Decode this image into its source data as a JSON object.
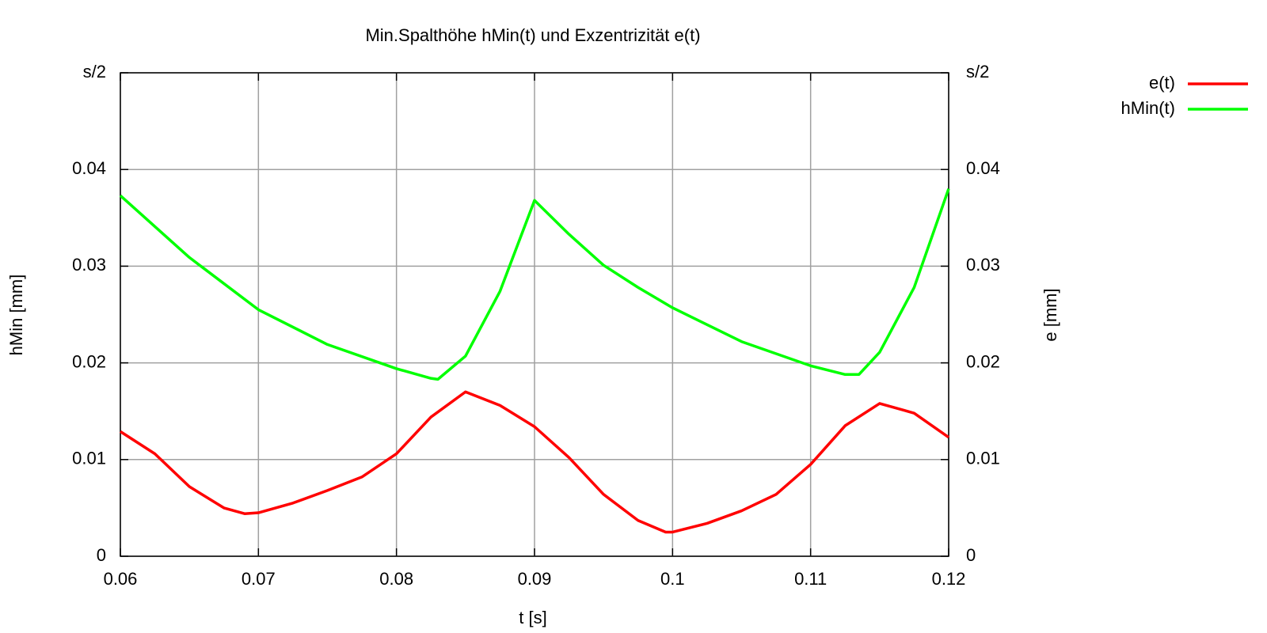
{
  "chart_data": {
    "type": "line",
    "title": "Min.Spalthöhe hMin(t) und Exzentrizität e(t)",
    "xlabel": "t [s]",
    "ylabel": "hMin [mm]",
    "y2label": "e [mm]",
    "xlim": [
      0.06,
      0.12
    ],
    "xticks": [
      0.06,
      0.07,
      0.08,
      0.09,
      0.1,
      0.11,
      0.12
    ],
    "ylim": [
      0,
      0.05
    ],
    "yticks": [
      0,
      0.01,
      0.02,
      0.03,
      0.04,
      {
        "value": 0.05,
        "label": "s/2"
      }
    ],
    "y2lim": [
      0,
      0.05
    ],
    "y2ticks": [
      0,
      0.01,
      0.02,
      0.03,
      0.04,
      {
        "value": 0.05,
        "label": "s/2"
      }
    ],
    "grid": true,
    "legend": "top-right",
    "series": [
      {
        "name": "e(t)",
        "color": "#ff0000",
        "axis": "y2",
        "x": [
          0.06,
          0.0625,
          0.065,
          0.0675,
          0.069,
          0.07,
          0.0725,
          0.075,
          0.0775,
          0.08,
          0.0825,
          0.085,
          0.0875,
          0.09,
          0.0925,
          0.095,
          0.0975,
          0.0995,
          0.1,
          0.1025,
          0.105,
          0.1075,
          0.11,
          0.1125,
          0.115,
          0.1175,
          0.12
        ],
        "values": [
          0.0129,
          0.0106,
          0.0072,
          0.005,
          0.0044,
          0.0045,
          0.0055,
          0.0068,
          0.0082,
          0.0106,
          0.0144,
          0.017,
          0.0156,
          0.0134,
          0.0102,
          0.0064,
          0.0037,
          0.0025,
          0.0025,
          0.0034,
          0.0047,
          0.0064,
          0.0095,
          0.0135,
          0.0158,
          0.0148,
          0.0123
        ]
      },
      {
        "name": "hMin(t)",
        "color": "#00ff00",
        "x": [
          0.06,
          0.065,
          0.07,
          0.075,
          0.08,
          0.0825,
          0.083,
          0.085,
          0.0875,
          0.09,
          0.0925,
          0.095,
          0.0975,
          0.1,
          0.105,
          0.11,
          0.1125,
          0.1135,
          0.115,
          0.1175,
          0.12
        ],
        "values": [
          0.0373,
          0.0309,
          0.0255,
          0.0219,
          0.0194,
          0.0184,
          0.0183,
          0.0207,
          0.0274,
          0.0368,
          0.0333,
          0.0301,
          0.0278,
          0.0257,
          0.0222,
          0.0197,
          0.0188,
          0.0188,
          0.0211,
          0.0278,
          0.038
        ]
      }
    ]
  }
}
